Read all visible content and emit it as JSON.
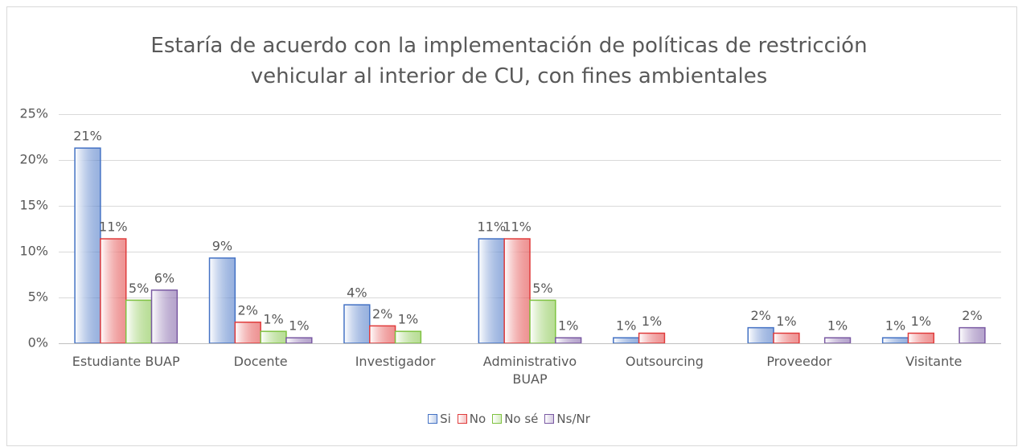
{
  "chart_data": {
    "type": "bar",
    "title": "Estaría de acuerdo con la implementación de políticas de restricción vehicular al interior de CU, con fines ambientales",
    "categories": [
      "Estudiante BUAP",
      "Docente",
      "Investigador",
      "Administrativo BUAP",
      "Outsourcing",
      "Proveedor",
      "Visitante"
    ],
    "series": [
      {
        "name": "Si",
        "color": "#4472c4",
        "values": [
          21.3,
          9.3,
          4.2,
          11.4,
          0.6,
          1.7,
          0.6
        ],
        "value_labels": [
          "21%",
          "9%",
          "4%",
          "11%",
          "1%",
          "2%",
          "1%"
        ]
      },
      {
        "name": "No",
        "color": "#e03c3c",
        "values": [
          11.4,
          2.3,
          1.9,
          11.4,
          1.1,
          1.1,
          1.1
        ],
        "value_labels": [
          "11%",
          "2%",
          "2%",
          "11%",
          "1%",
          "1%",
          "1%"
        ]
      },
      {
        "name": "No sé",
        "color": "#7fc241",
        "values": [
          4.7,
          1.3,
          1.3,
          4.7,
          null,
          null,
          null
        ],
        "value_labels": [
          "5%",
          "1%",
          "1%",
          "5%",
          null,
          null,
          null
        ]
      },
      {
        "name": "Ns/Nr",
        "color": "#7a5aa3",
        "values": [
          5.8,
          0.6,
          null,
          0.6,
          null,
          0.6,
          1.7
        ],
        "value_labels": [
          "6%",
          "1%",
          null,
          "1%",
          null,
          "1%",
          "2%"
        ]
      }
    ],
    "ylim": [
      0,
      25
    ],
    "yticks": [
      {
        "value": 0,
        "label": "0%"
      },
      {
        "value": 5,
        "label": "5%"
      },
      {
        "value": 10,
        "label": "10%"
      },
      {
        "value": 15,
        "label": "15%"
      },
      {
        "value": 20,
        "label": "20%"
      },
      {
        "value": 25,
        "label": "25%"
      }
    ],
    "grid": true,
    "legend": "bottom"
  }
}
